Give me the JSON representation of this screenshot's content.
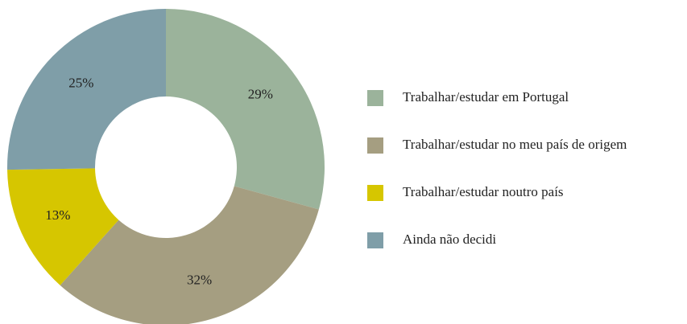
{
  "chart_data": {
    "type": "donut",
    "categories": [
      "Trabalhar/estudar em Portugal",
      "Trabalhar/estudar no meu país de origem",
      "Trabalhar/estudar noutro país",
      "Ainda não decidi"
    ],
    "values": [
      29,
      32,
      13,
      25
    ],
    "value_labels": [
      "29%",
      "32%",
      "13%",
      "25%"
    ],
    "colors": [
      "#9bb39b",
      "#a59e81",
      "#d6c600",
      "#7f9ea8"
    ],
    "legend": "right"
  }
}
